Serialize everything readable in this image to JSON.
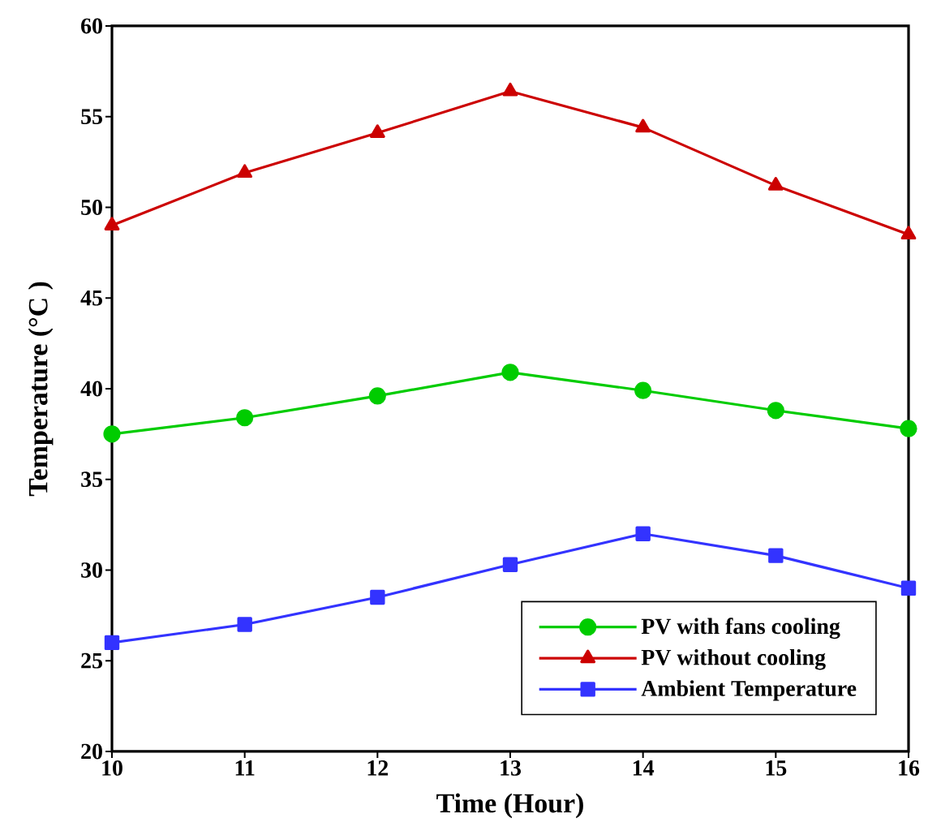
{
  "chart_data": {
    "type": "line",
    "xlabel": "Time (Hour)",
    "ylabel": "Temperature (°C )",
    "x": [
      10,
      11,
      12,
      13,
      14,
      15,
      16
    ],
    "series": [
      {
        "name": "PV with fans cooling",
        "color": "#00cc00",
        "marker": "circle",
        "values": [
          37.5,
          38.4,
          39.6,
          40.9,
          39.9,
          38.8,
          37.8
        ]
      },
      {
        "name": "PV without cooling",
        "color": "#cc0000",
        "marker": "triangle",
        "values": [
          49.0,
          51.9,
          54.1,
          56.4,
          54.4,
          51.2,
          48.5
        ]
      },
      {
        "name": "Ambient Temperature",
        "color": "#3333ff",
        "marker": "square",
        "values": [
          26.0,
          27.0,
          28.5,
          30.3,
          32.0,
          30.8,
          29.0
        ]
      }
    ],
    "xlim": [
      10,
      16
    ],
    "ylim": [
      20,
      60
    ],
    "xticks": [
      10,
      11,
      12,
      13,
      14,
      15,
      16
    ],
    "yticks": [
      20,
      25,
      30,
      35,
      40,
      45,
      50,
      55,
      60
    ],
    "grid": false,
    "legend": "bottom right",
    "line_style": "solid"
  }
}
